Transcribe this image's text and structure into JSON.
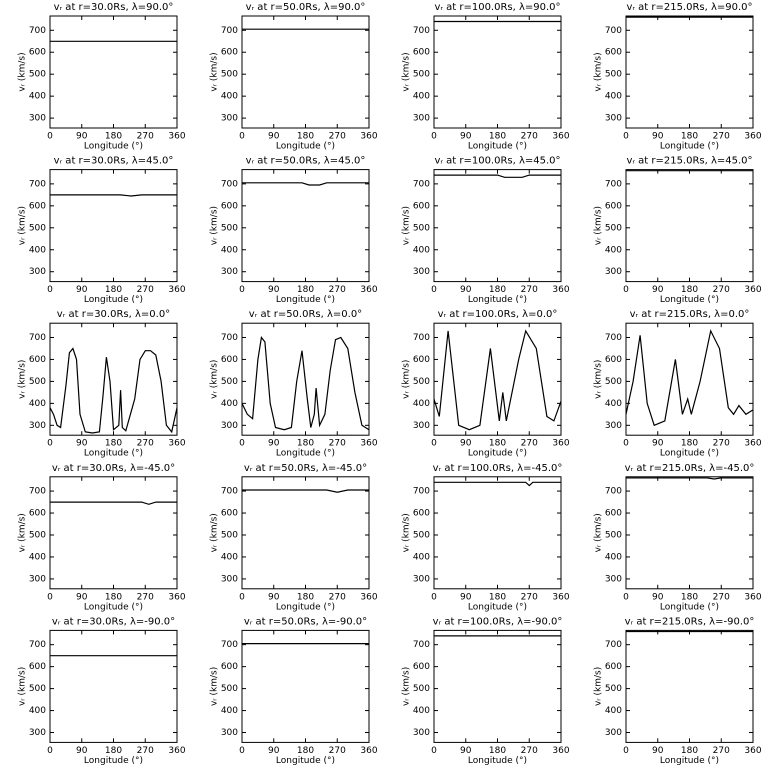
{
  "chart_data": [
    {
      "type": "line",
      "title": "vᵣ at r=30.0Rs, λ=90.0°",
      "xlabel": "Longitude (°)",
      "ylabel": "vᵣ (km/s)",
      "x": [
        0,
        360
      ],
      "values": [
        650,
        650
      ],
      "color": "#000000",
      "xlim": [
        0,
        360
      ],
      "ylim": [
        255,
        765
      ],
      "xticks": [
        0,
        90,
        180,
        270,
        360
      ],
      "yticks": [
        300,
        400,
        500,
        600,
        700
      ]
    },
    {
      "type": "line",
      "title": "vᵣ at r=50.0Rs, λ=90.0°",
      "xlabel": "Longitude (°)",
      "ylabel": "vᵣ (km/s)",
      "x": [
        0,
        360
      ],
      "values": [
        705,
        705
      ],
      "color": "#000000",
      "xlim": [
        0,
        360
      ],
      "ylim": [
        255,
        765
      ],
      "xticks": [
        0,
        90,
        180,
        270,
        360
      ],
      "yticks": [
        300,
        400,
        500,
        600,
        700
      ]
    },
    {
      "type": "line",
      "title": "vᵣ at r=100.0Rs, λ=90.0°",
      "xlabel": "Longitude (°)",
      "ylabel": "vᵣ (km/s)",
      "x": [
        0,
        360
      ],
      "values": [
        740,
        740
      ],
      "color": "#000000",
      "xlim": [
        0,
        360
      ],
      "ylim": [
        255,
        765
      ],
      "xticks": [
        0,
        90,
        180,
        270,
        360
      ],
      "yticks": [
        300,
        400,
        500,
        600,
        700
      ]
    },
    {
      "type": "line",
      "title": "vᵣ at r=215.0Rs, λ=90.0°",
      "xlabel": "Longitude (°)",
      "ylabel": "vᵣ (km/s)",
      "x": [
        0,
        360
      ],
      "values": [
        760,
        760
      ],
      "color": "#000000",
      "xlim": [
        0,
        360
      ],
      "ylim": [
        255,
        765
      ],
      "xticks": [
        0,
        90,
        180,
        270,
        360
      ],
      "yticks": [
        300,
        400,
        500,
        600,
        700
      ]
    },
    {
      "type": "line",
      "title": "vᵣ at r=30.0Rs, λ=45.0°",
      "xlabel": "Longitude (°)",
      "ylabel": "vᵣ (km/s)",
      "x": [
        0,
        200,
        230,
        260,
        360
      ],
      "values": [
        650,
        650,
        645,
        650,
        650
      ],
      "color": "#000000",
      "xlim": [
        0,
        360
      ],
      "ylim": [
        255,
        765
      ],
      "xticks": [
        0,
        90,
        180,
        270,
        360
      ],
      "yticks": [
        300,
        400,
        500,
        600,
        700
      ]
    },
    {
      "type": "line",
      "title": "vᵣ at r=50.0Rs, λ=45.0°",
      "xlabel": "Longitude (°)",
      "ylabel": "vᵣ (km/s)",
      "x": [
        0,
        170,
        190,
        220,
        240,
        360
      ],
      "values": [
        705,
        705,
        695,
        695,
        705,
        705
      ],
      "color": "#000000",
      "xlim": [
        0,
        360
      ],
      "ylim": [
        255,
        765
      ],
      "xticks": [
        0,
        90,
        180,
        270,
        360
      ],
      "yticks": [
        300,
        400,
        500,
        600,
        700
      ]
    },
    {
      "type": "line",
      "title": "vᵣ at r=100.0Rs, λ=45.0°",
      "xlabel": "Longitude (°)",
      "ylabel": "vᵣ (km/s)",
      "x": [
        0,
        180,
        200,
        250,
        270,
        360
      ],
      "values": [
        740,
        740,
        730,
        730,
        740,
        740
      ],
      "color": "#000000",
      "xlim": [
        0,
        360
      ],
      "ylim": [
        255,
        765
      ],
      "xticks": [
        0,
        90,
        180,
        270,
        360
      ],
      "yticks": [
        300,
        400,
        500,
        600,
        700
      ]
    },
    {
      "type": "line",
      "title": "vᵣ at r=215.0Rs, λ=45.0°",
      "xlabel": "Longitude (°)",
      "ylabel": "vᵣ (km/s)",
      "x": [
        0,
        360
      ],
      "values": [
        760,
        760
      ],
      "color": "#000000",
      "xlim": [
        0,
        360
      ],
      "ylim": [
        255,
        765
      ],
      "xticks": [
        0,
        90,
        180,
        270,
        360
      ],
      "yticks": [
        300,
        400,
        500,
        600,
        700
      ]
    },
    {
      "type": "line",
      "title": "vᵣ at r=30.0Rs, λ=0.0°",
      "xlabel": "Longitude (°)",
      "ylabel": "vᵣ (km/s)",
      "x": [
        0,
        10,
        20,
        30,
        45,
        55,
        65,
        75,
        85,
        100,
        120,
        140,
        150,
        160,
        170,
        180,
        195,
        200,
        205,
        215,
        240,
        255,
        270,
        285,
        300,
        315,
        330,
        345,
        360
      ],
      "values": [
        380,
        350,
        300,
        290,
        480,
        630,
        650,
        600,
        350,
        270,
        265,
        270,
        430,
        610,
        500,
        280,
        300,
        460,
        290,
        275,
        420,
        600,
        640,
        640,
        620,
        500,
        300,
        270,
        380
      ],
      "color": "#000000",
      "xlim": [
        0,
        360
      ],
      "ylim": [
        255,
        765
      ],
      "xticks": [
        0,
        90,
        180,
        270,
        360
      ],
      "yticks": [
        300,
        400,
        500,
        600,
        700
      ]
    },
    {
      "type": "line",
      "title": "vᵣ at r=50.0Rs, λ=0.0°",
      "xlabel": "Longitude (°)",
      "ylabel": "vᵣ (km/s)",
      "x": [
        0,
        15,
        30,
        45,
        55,
        65,
        80,
        95,
        120,
        140,
        155,
        170,
        185,
        195,
        205,
        210,
        220,
        235,
        250,
        265,
        280,
        300,
        320,
        340,
        360
      ],
      "values": [
        400,
        350,
        330,
        600,
        700,
        680,
        400,
        290,
        280,
        290,
        500,
        640,
        420,
        290,
        350,
        470,
        300,
        350,
        550,
        690,
        700,
        650,
        450,
        300,
        280
      ],
      "color": "#000000",
      "xlim": [
        0,
        360
      ],
      "ylim": [
        255,
        765
      ],
      "xticks": [
        0,
        90,
        180,
        270,
        360
      ],
      "yticks": [
        300,
        400,
        500,
        600,
        700
      ]
    },
    {
      "type": "line",
      "title": "vᵣ at r=100.0Rs, λ=0.0°",
      "xlabel": "Longitude (°)",
      "ylabel": "vᵣ (km/s)",
      "x": [
        0,
        15,
        40,
        70,
        100,
        130,
        160,
        185,
        195,
        205,
        240,
        260,
        290,
        320,
        340,
        360
      ],
      "values": [
        420,
        340,
        730,
        300,
        280,
        300,
        650,
        320,
        450,
        320,
        600,
        730,
        650,
        340,
        320,
        410
      ],
      "color": "#000000",
      "xlim": [
        0,
        360
      ],
      "ylim": [
        255,
        765
      ],
      "xticks": [
        0,
        90,
        180,
        270,
        360
      ],
      "yticks": [
        300,
        400,
        500,
        600,
        700
      ]
    },
    {
      "type": "line",
      "title": "vᵣ at r=215.0Rs, λ=0.0°",
      "xlabel": "Longitude (°)",
      "ylabel": "vᵣ (km/s)",
      "x": [
        0,
        20,
        40,
        60,
        80,
        110,
        140,
        160,
        175,
        185,
        210,
        240,
        265,
        290,
        305,
        320,
        340,
        360
      ],
      "values": [
        350,
        500,
        710,
        400,
        300,
        320,
        600,
        350,
        420,
        350,
        500,
        730,
        650,
        380,
        350,
        390,
        350,
        370
      ],
      "color": "#000000",
      "xlim": [
        0,
        360
      ],
      "ylim": [
        255,
        765
      ],
      "xticks": [
        0,
        90,
        180,
        270,
        360
      ],
      "yticks": [
        300,
        400,
        500,
        600,
        700
      ]
    },
    {
      "type": "line",
      "title": "vᵣ at r=30.0Rs, λ=-45.0°",
      "xlabel": "Longitude (°)",
      "ylabel": "vᵣ (km/s)",
      "x": [
        0,
        260,
        280,
        300,
        360
      ],
      "values": [
        650,
        650,
        640,
        650,
        650
      ],
      "color": "#000000",
      "xlim": [
        0,
        360
      ],
      "ylim": [
        255,
        765
      ],
      "xticks": [
        0,
        90,
        180,
        270,
        360
      ],
      "yticks": [
        300,
        400,
        500,
        600,
        700
      ]
    },
    {
      "type": "line",
      "title": "vᵣ at r=50.0Rs, λ=-45.0°",
      "xlabel": "Longitude (°)",
      "ylabel": "vᵣ (km/s)",
      "x": [
        0,
        240,
        270,
        300,
        360
      ],
      "values": [
        705,
        705,
        695,
        705,
        705
      ],
      "color": "#000000",
      "xlim": [
        0,
        360
      ],
      "ylim": [
        255,
        765
      ],
      "xticks": [
        0,
        90,
        180,
        270,
        360
      ],
      "yticks": [
        300,
        400,
        500,
        600,
        700
      ]
    },
    {
      "type": "line",
      "title": "vᵣ at r=100.0Rs, λ=-45.0°",
      "xlabel": "Longitude (°)",
      "ylabel": "vᵣ (km/s)",
      "x": [
        0,
        260,
        270,
        280,
        360
      ],
      "values": [
        740,
        740,
        725,
        740,
        740
      ],
      "color": "#000000",
      "xlim": [
        0,
        360
      ],
      "ylim": [
        255,
        765
      ],
      "xticks": [
        0,
        90,
        180,
        270,
        360
      ],
      "yticks": [
        300,
        400,
        500,
        600,
        700
      ]
    },
    {
      "type": "line",
      "title": "vᵣ at r=215.0Rs, λ=-45.0°",
      "xlabel": "Longitude (°)",
      "ylabel": "vᵣ (km/s)",
      "x": [
        0,
        230,
        250,
        270,
        360
      ],
      "values": [
        760,
        760,
        755,
        760,
        760
      ],
      "color": "#000000",
      "xlim": [
        0,
        360
      ],
      "ylim": [
        255,
        765
      ],
      "xticks": [
        0,
        90,
        180,
        270,
        360
      ],
      "yticks": [
        300,
        400,
        500,
        600,
        700
      ]
    },
    {
      "type": "line",
      "title": "vᵣ at r=30.0Rs, λ=-90.0°",
      "xlabel": "Longitude (°)",
      "ylabel": "vᵣ (km/s)",
      "x": [
        0,
        360
      ],
      "values": [
        650,
        650
      ],
      "color": "#000000",
      "xlim": [
        0,
        360
      ],
      "ylim": [
        255,
        765
      ],
      "xticks": [
        0,
        90,
        180,
        270,
        360
      ],
      "yticks": [
        300,
        400,
        500,
        600,
        700
      ]
    },
    {
      "type": "line",
      "title": "vᵣ at r=50.0Rs, λ=-90.0°",
      "xlabel": "Longitude (°)",
      "ylabel": "vᵣ (km/s)",
      "x": [
        0,
        360
      ],
      "values": [
        705,
        705
      ],
      "color": "#000000",
      "xlim": [
        0,
        360
      ],
      "ylim": [
        255,
        765
      ],
      "xticks": [
        0,
        90,
        180,
        270,
        360
      ],
      "yticks": [
        300,
        400,
        500,
        600,
        700
      ]
    },
    {
      "type": "line",
      "title": "vᵣ at r=100.0Rs, λ=-90.0°",
      "xlabel": "Longitude (°)",
      "ylabel": "vᵣ (km/s)",
      "x": [
        0,
        360
      ],
      "values": [
        740,
        740
      ],
      "color": "#000000",
      "xlim": [
        0,
        360
      ],
      "ylim": [
        255,
        765
      ],
      "xticks": [
        0,
        90,
        180,
        270,
        360
      ],
      "yticks": [
        300,
        400,
        500,
        600,
        700
      ]
    },
    {
      "type": "line",
      "title": "vᵣ at r=215.0Rs, λ=-90.0°",
      "xlabel": "Longitude (°)",
      "ylabel": "vᵣ (km/s)",
      "x": [
        0,
        360
      ],
      "values": [
        760,
        760
      ],
      "color": "#000000",
      "xlim": [
        0,
        360
      ],
      "ylim": [
        255,
        765
      ],
      "xticks": [
        0,
        90,
        180,
        270,
        360
      ],
      "yticks": [
        300,
        400,
        500,
        600,
        700
      ]
    }
  ]
}
